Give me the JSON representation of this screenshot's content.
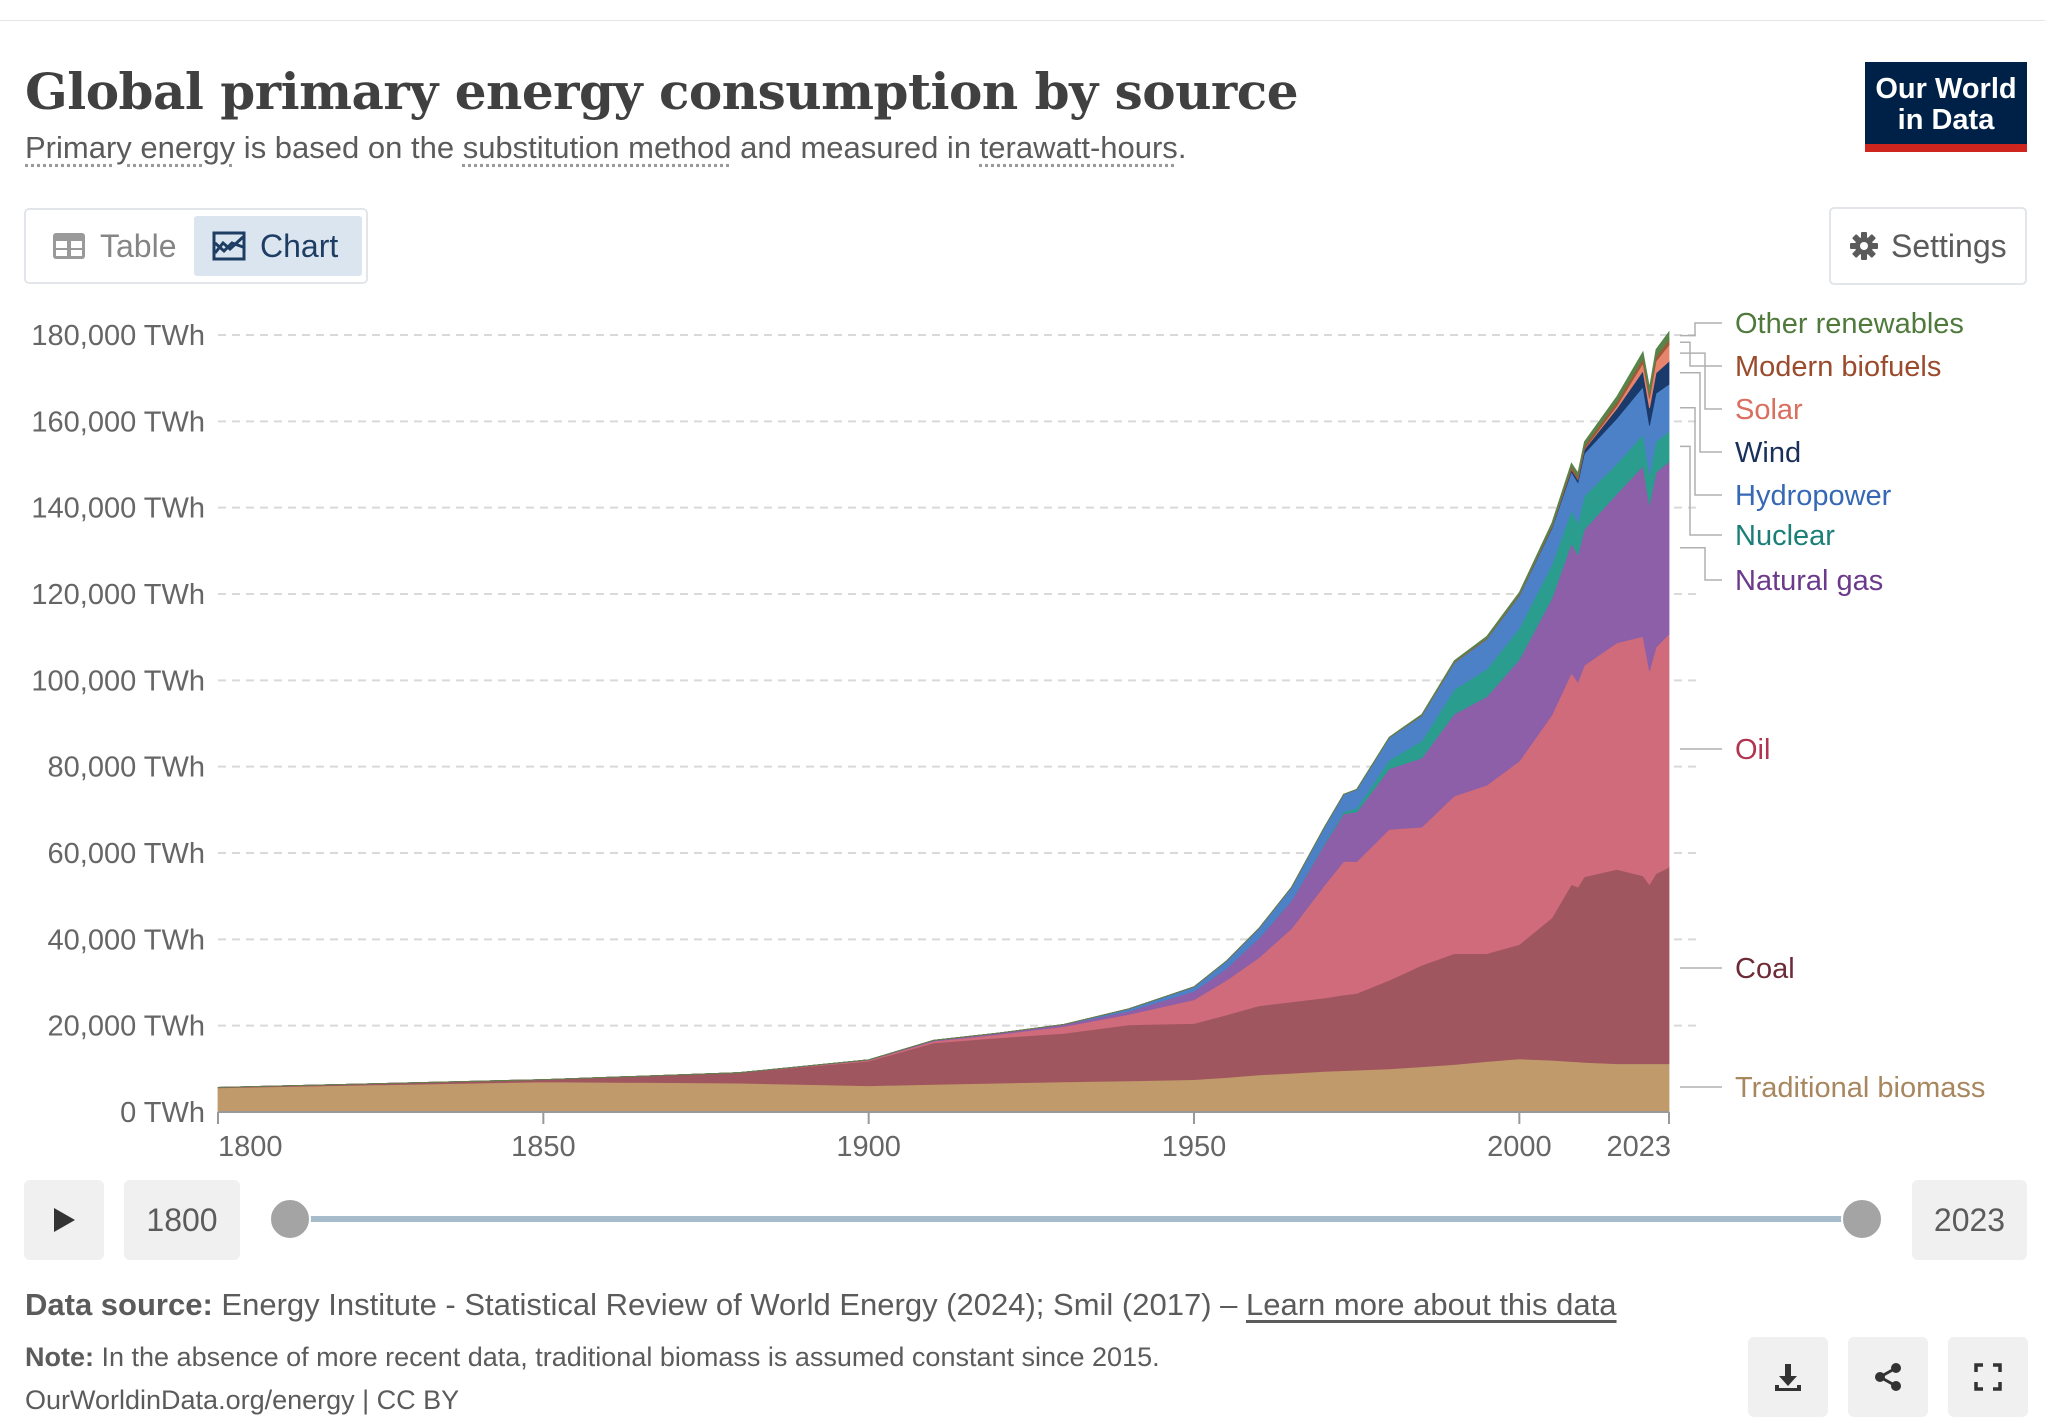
{
  "header": {
    "title": "Global primary energy consumption by source",
    "subtitle_parts": {
      "primary_energy": "Primary energy",
      "text1": " is based on the ",
      "substitution": "substitution method",
      "text2": " and measured in ",
      "twh": "terawatt-hours",
      "text3": "."
    },
    "logo_line1": "Our World",
    "logo_line2": "in Data"
  },
  "toolbar": {
    "table_label": "Table",
    "chart_label": "Chart",
    "settings_label": "Settings",
    "table_icon": "table-icon",
    "chart_icon": "chart-icon",
    "settings_icon": "gear-icon"
  },
  "timeline": {
    "start_year": "1800",
    "end_year": "2023",
    "play_icon": "play-icon"
  },
  "footer": {
    "source_label": "Data source:",
    "source_text": " Energy Institute - Statistical Review of World Energy (2024); Smil (2017) – ",
    "source_link": "Learn more about this data",
    "note_label": "Note:",
    "note_text": " In the absence of more recent data, traditional biomass is assumed constant since 2015.",
    "credit": "OurWorldinData.org/energy | CC BY",
    "download_icon": "download-icon",
    "share_icon": "share-icon",
    "fullscreen_icon": "fullscreen-icon"
  },
  "chart_data": {
    "type": "area",
    "stacked": true,
    "title": "Global primary energy consumption by source",
    "xlabel": "",
    "ylabel": "",
    "x": [
      1800,
      1850,
      1880,
      1900,
      1910,
      1920,
      1930,
      1940,
      1950,
      1955,
      1960,
      1965,
      1970,
      1973,
      1975,
      1980,
      1985,
      1990,
      1995,
      2000,
      2005,
      2008,
      2009,
      2010,
      2015,
      2019,
      2020,
      2021,
      2023
    ],
    "xlim": [
      1800,
      2023
    ],
    "ylim": [
      0,
      180000
    ],
    "y_ticks": [
      0,
      20000,
      40000,
      60000,
      80000,
      100000,
      120000,
      140000,
      160000,
      180000
    ],
    "y_tick_labels": [
      "0 TWh",
      "20,000 TWh",
      "40,000 TWh",
      "60,000 TWh",
      "80,000 TWh",
      "100,000 TWh",
      "120,000 TWh",
      "140,000 TWh",
      "160,000 TWh",
      "180,000 TWh"
    ],
    "x_ticks": [
      1800,
      1850,
      1900,
      1950,
      2000,
      2023
    ],
    "x_tick_labels": [
      "1800",
      "1850",
      "1900",
      "1950",
      "2000",
      "2023"
    ],
    "grid": true,
    "legend_position": "right (inline labels)",
    "series": [
      {
        "name": "Traditional biomass",
        "color": "#c19a6b",
        "label_color": "#a8875f",
        "values": [
          5600,
          7000,
          6700,
          6100,
          6400,
          6700,
          7000,
          7200,
          7500,
          8000,
          8600,
          9000,
          9400,
          9600,
          9700,
          10000,
          10500,
          11000,
          11700,
          12300,
          12000,
          11700,
          11600,
          11500,
          11200,
          11200,
          11200,
          11200,
          11200
        ]
      },
      {
        "name": "Coal",
        "color": "#a0565e",
        "label_color": "#6d2b36",
        "values": [
          100,
          500,
          2400,
          5700,
          9600,
          10500,
          11200,
          13000,
          13000,
          14500,
          16000,
          16500,
          17000,
          17500,
          17800,
          20500,
          23500,
          25700,
          25000,
          26500,
          33000,
          41000,
          40500,
          43000,
          45000,
          43500,
          41500,
          44000,
          45500
        ]
      },
      {
        "name": "Oil",
        "color": "#d06b7c",
        "label_color": "#b13450",
        "values": [
          0,
          0,
          0,
          200,
          400,
          800,
          1600,
          2400,
          5500,
          8000,
          11200,
          17000,
          26000,
          31000,
          30500,
          35000,
          32000,
          36500,
          39000,
          42500,
          47000,
          49000,
          47500,
          49000,
          52500,
          55500,
          49500,
          52500,
          54000
        ]
      },
      {
        "name": "Natural gas",
        "color": "#8c5fa8",
        "label_color": "#6b3a8a",
        "values": [
          0,
          0,
          0,
          100,
          200,
          300,
          500,
          800,
          2000,
          2800,
          4500,
          6500,
          9500,
          11000,
          11500,
          14000,
          16000,
          19000,
          20500,
          23500,
          27000,
          30000,
          29500,
          31500,
          34500,
          39500,
          38500,
          40500,
          40000
        ]
      },
      {
        "name": "Nuclear",
        "color": "#2a9d8f",
        "label_color": "#1b7f78",
        "values": [
          0,
          0,
          0,
          0,
          0,
          0,
          0,
          0,
          0,
          0,
          0,
          100,
          250,
          500,
          900,
          2000,
          4000,
          5700,
          6400,
          7300,
          7800,
          7600,
          7400,
          7700,
          7000,
          7300,
          7000,
          7100,
          7000
        ]
      },
      {
        "name": "Hydropower",
        "color": "#4c81c7",
        "label_color": "#3668b5",
        "values": [
          0,
          0,
          0,
          0,
          0,
          0,
          0,
          500,
          1000,
          1700,
          2300,
          3000,
          3700,
          4000,
          4300,
          5200,
          5800,
          6200,
          7000,
          7500,
          8400,
          9000,
          9300,
          9900,
          10500,
          11000,
          11300,
          11200,
          10900
        ]
      },
      {
        "name": "Wind",
        "color": "#193a6b",
        "label_color": "#18305a",
        "values": [
          0,
          0,
          0,
          0,
          0,
          0,
          0,
          0,
          0,
          0,
          0,
          0,
          0,
          0,
          0,
          0,
          0,
          10,
          20,
          80,
          250,
          550,
          700,
          900,
          2300,
          3700,
          4100,
          4700,
          5300
        ]
      },
      {
        "name": "Solar",
        "color": "#e6846e",
        "label_color": "#d96f5e",
        "values": [
          0,
          0,
          0,
          0,
          0,
          0,
          0,
          0,
          0,
          0,
          0,
          0,
          0,
          0,
          0,
          0,
          0,
          0,
          0,
          0,
          10,
          40,
          60,
          100,
          650,
          1800,
          2200,
          2700,
          3800
        ]
      },
      {
        "name": "Modern biofuels",
        "color": "#9e5936",
        "label_color": "#9a4b2c",
        "values": [
          0,
          0,
          0,
          0,
          0,
          0,
          0,
          0,
          0,
          0,
          0,
          0,
          0,
          0,
          20,
          50,
          100,
          150,
          170,
          200,
          350,
          650,
          700,
          750,
          900,
          1100,
          1000,
          1100,
          1250
        ]
      },
      {
        "name": "Other renewables",
        "color": "#58844a",
        "label_color": "#4f7a3c",
        "values": [
          0,
          0,
          0,
          0,
          0,
          0,
          0,
          0,
          0,
          0,
          0,
          0,
          20,
          30,
          50,
          100,
          200,
          300,
          400,
          500,
          650,
          750,
          800,
          900,
          1200,
          1500,
          1550,
          1650,
          1800
        ]
      }
    ]
  }
}
